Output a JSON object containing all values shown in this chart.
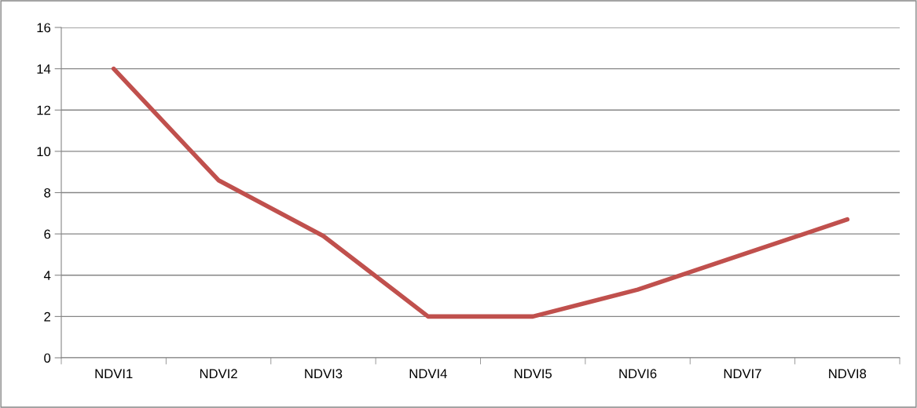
{
  "chart_data": {
    "type": "line",
    "categories": [
      "NDVI1",
      "NDVI2",
      "NDVI3",
      "NDVI4",
      "NDVI5",
      "NDVI6",
      "NDVI7",
      "NDVI8"
    ],
    "series": [
      {
        "color": "#c0504d",
        "values": [
          14.0,
          8.6,
          5.9,
          2.0,
          2.0,
          3.3,
          5.0,
          6.7
        ]
      }
    ],
    "ylim": [
      0,
      16
    ],
    "yticks": [
      0,
      2,
      4,
      6,
      8,
      10,
      12,
      14,
      16
    ],
    "grid": "y",
    "marker": "none",
    "line_style": "solid"
  }
}
